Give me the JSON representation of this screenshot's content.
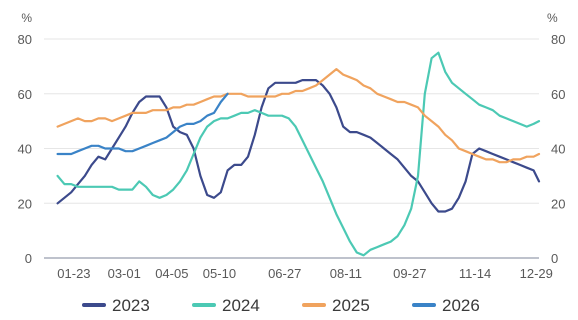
{
  "chart_data": {
    "type": "line",
    "title": "",
    "xlabel": "",
    "ylabel": "",
    "y_unit_left": "%",
    "y_unit_right": "%",
    "ylim": [
      0,
      80
    ],
    "yticks": [
      "0",
      "20",
      "40",
      "60",
      "80"
    ],
    "x_domain": [
      0,
      364
    ],
    "x_tick_labels": [
      "01-23",
      "03-01",
      "04-05",
      "05-10",
      "06-27",
      "08-11",
      "09-27",
      "11-14",
      "12-29"
    ],
    "x_tick_positions": [
      22,
      59,
      94,
      129,
      177,
      222,
      269,
      317,
      362
    ],
    "grid": "horizontal",
    "legend_placement": "bottom",
    "colors": {
      "2023": "#3c4a8c",
      "2024": "#4cc9b4",
      "2025": "#f0a35e",
      "2026": "#3a83c7",
      "grid": "#e6e6e6",
      "axis": "#a9aebb"
    },
    "series": [
      {
        "name": "2023",
        "color": "#3c4a8c",
        "x": [
          10,
          15,
          20,
          25,
          30,
          35,
          40,
          45,
          50,
          55,
          60,
          65,
          70,
          75,
          80,
          85,
          90,
          95,
          100,
          105,
          110,
          115,
          120,
          125,
          130,
          135,
          140,
          145,
          150,
          155,
          160,
          165,
          170,
          175,
          180,
          185,
          190,
          195,
          200,
          205,
          210,
          215,
          220,
          225,
          230,
          235,
          240,
          245,
          250,
          255,
          260,
          265,
          270,
          275,
          280,
          285,
          290,
          295,
          300,
          305,
          310,
          315,
          320,
          325,
          330,
          335,
          340,
          345,
          350,
          355,
          360,
          364
        ],
        "values": [
          20,
          22,
          24,
          27,
          30,
          34,
          37,
          36,
          40,
          44,
          48,
          53,
          57,
          59,
          59,
          59,
          55,
          48,
          46,
          45,
          40,
          30,
          23,
          22,
          24,
          32,
          34,
          34,
          37,
          45,
          55,
          62,
          64,
          64,
          64,
          64,
          65,
          65,
          65,
          63,
          60,
          55,
          48,
          46,
          46,
          45,
          44,
          42,
          40,
          38,
          36,
          33,
          30,
          28,
          24,
          20,
          17,
          17,
          18,
          22,
          28,
          38,
          40,
          39,
          38,
          37,
          36,
          35,
          34,
          33,
          32,
          28
        ]
      },
      {
        "name": "2024",
        "color": "#4cc9b4",
        "x": [
          10,
          15,
          20,
          25,
          30,
          35,
          40,
          45,
          50,
          55,
          60,
          65,
          70,
          75,
          80,
          85,
          90,
          95,
          100,
          105,
          110,
          115,
          120,
          125,
          130,
          135,
          140,
          145,
          150,
          155,
          160,
          165,
          170,
          175,
          180,
          185,
          190,
          195,
          200,
          205,
          210,
          215,
          220,
          225,
          230,
          235,
          240,
          245,
          250,
          255,
          260,
          265,
          270,
          275,
          280,
          285,
          290,
          295,
          300,
          305,
          310,
          315,
          320,
          325,
          330,
          335,
          340,
          345,
          350,
          355,
          360,
          364
        ],
        "values": [
          30,
          27,
          27,
          26,
          26,
          26,
          26,
          26,
          26,
          25,
          25,
          25,
          28,
          26,
          23,
          22,
          23,
          25,
          28,
          32,
          38,
          44,
          48,
          50,
          51,
          51,
          52,
          53,
          53,
          54,
          53,
          52,
          52,
          52,
          51,
          48,
          43,
          38,
          33,
          28,
          22,
          16,
          11,
          6,
          2,
          1,
          3,
          4,
          5,
          6,
          8,
          12,
          18,
          30,
          60,
          73,
          75,
          68,
          64,
          62,
          60,
          58,
          56,
          55,
          54,
          52,
          51,
          50,
          49,
          48,
          49,
          50
        ]
      },
      {
        "name": "2025",
        "color": "#f0a35e",
        "x": [
          10,
          15,
          20,
          25,
          30,
          35,
          40,
          45,
          50,
          55,
          60,
          65,
          70,
          75,
          80,
          85,
          90,
          95,
          100,
          105,
          110,
          115,
          120,
          125,
          130,
          135,
          140,
          145,
          150,
          155,
          160,
          165,
          170,
          175,
          180,
          185,
          190,
          195,
          200,
          205,
          210,
          215,
          220,
          225,
          230,
          235,
          240,
          245,
          250,
          255,
          260,
          265,
          270,
          275,
          280,
          285,
          290,
          295,
          300,
          305,
          310,
          315,
          320,
          325,
          330,
          335,
          340,
          345,
          350,
          355,
          360,
          364
        ],
        "values": [
          48,
          49,
          50,
          51,
          50,
          50,
          51,
          51,
          50,
          51,
          52,
          53,
          53,
          53,
          54,
          54,
          54,
          55,
          55,
          56,
          56,
          57,
          58,
          59,
          59,
          60,
          60,
          60,
          59,
          59,
          59,
          59,
          59,
          60,
          60,
          61,
          61,
          62,
          63,
          65,
          67,
          69,
          67,
          66,
          65,
          63,
          62,
          60,
          59,
          58,
          57,
          57,
          56,
          55,
          52,
          50,
          48,
          45,
          43,
          40,
          39,
          38,
          37,
          36,
          36,
          35,
          35,
          36,
          36,
          37,
          37,
          38
        ]
      },
      {
        "name": "2026",
        "color": "#3a83c7",
        "x": [
          10,
          15,
          20,
          25,
          30,
          35,
          40,
          45,
          50,
          55,
          60,
          65,
          70,
          75,
          80,
          85,
          90,
          95,
          100,
          105,
          110,
          115,
          120,
          125,
          130,
          135
        ],
        "values": [
          38,
          38,
          38,
          39,
          40,
          41,
          41,
          40,
          40,
          40,
          39,
          39,
          40,
          41,
          42,
          43,
          44,
          46,
          48,
          49,
          49,
          50,
          52,
          53,
          57,
          60
        ]
      }
    ]
  }
}
